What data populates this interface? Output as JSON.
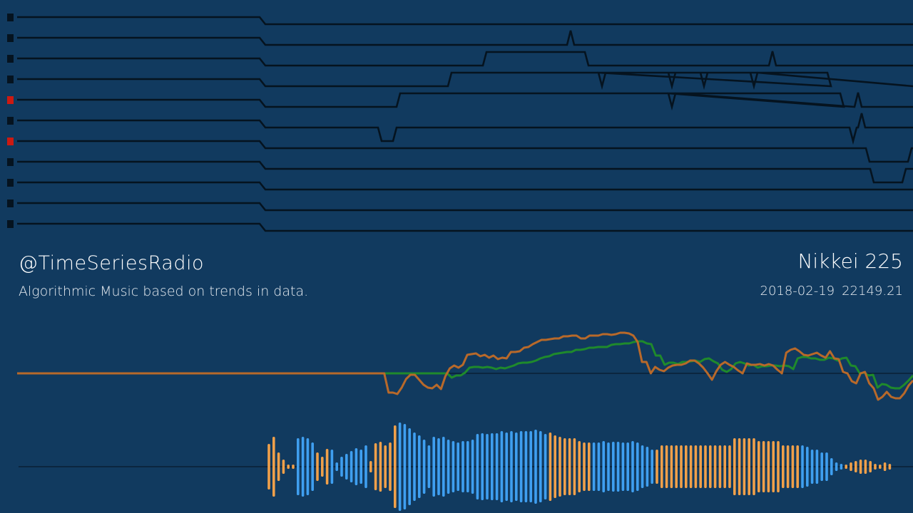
{
  "channel": {
    "handle": "@TimeSeriesRadio",
    "tagline": "Algorithmic Music based on trends in data."
  },
  "series_info": {
    "name": "Nikkei 225",
    "date": "2018-02-19",
    "value": "22149.21"
  },
  "colors": {
    "background": "#113a5f",
    "lane_line": "#05131f",
    "marker_idle": "#05131f",
    "marker_active": "#cc1a12",
    "price_line": "#b8692a",
    "average_line": "#1f8a2c",
    "bar_orange": "#f0a04a",
    "bar_blue": "#3f9ff0"
  },
  "lanes": {
    "count": 11,
    "active": [
      4,
      6
    ],
    "events": [
      [],
      [
        [
          "spike",
          800
        ]
      ],
      [
        [
          "up",
          677,
          825
        ],
        [
          "spike",
          1083
        ]
      ],
      [
        [
          "up",
          628,
          1165
        ],
        [
          "dip",
          844
        ],
        [
          "dip",
          942
        ],
        [
          "dip",
          987
        ],
        [
          "dip",
          1057
        ]
      ],
      [
        [
          "up",
          556,
          1183
        ],
        [
          "dip",
          942
        ],
        [
          "spike",
          1203
        ]
      ],
      [
        [
          "down",
          530,
          556
        ],
        [
          "dip",
          1196
        ],
        [
          "spike",
          1208
        ]
      ],
      [
        [
          "down",
          1214,
          1278
        ]
      ],
      [
        [
          "down",
          1220,
          1270
        ]
      ],
      [],
      [],
      []
    ]
  },
  "chart_data": {
    "type": "line",
    "series": [
      {
        "values": [
          0,
          0,
          0,
          0,
          0,
          0,
          0,
          0,
          0,
          0,
          0,
          0,
          0,
          0,
          0,
          0,
          0,
          0,
          0,
          0,
          0,
          0,
          0,
          0,
          0,
          0,
          0,
          0,
          0,
          0,
          0,
          0,
          0,
          0,
          0,
          0,
          0,
          0,
          0,
          0,
          0,
          0,
          0,
          0,
          0,
          0,
          0,
          0,
          0,
          0,
          0,
          0,
          0,
          0,
          0,
          0,
          0,
          0,
          0,
          0,
          0,
          0,
          0,
          0,
          0,
          0,
          0,
          0,
          0,
          0,
          0,
          0,
          0,
          0,
          0,
          0,
          0,
          0,
          0,
          0,
          0,
          0,
          0,
          0,
          0,
          -27,
          -27,
          -29,
          -20,
          -8,
          -2,
          -2,
          -9,
          -16,
          -20,
          -21,
          -16,
          -22,
          -4,
          7,
          11,
          8,
          12,
          26,
          27,
          28,
          24,
          26,
          22,
          25,
          20,
          22,
          21,
          30,
          30,
          31,
          36,
          37,
          41,
          44,
          47,
          47,
          48,
          49,
          49,
          52,
          52,
          53,
          53,
          49,
          49,
          53,
          53,
          53,
          55,
          55,
          54,
          55,
          57,
          57,
          56,
          53,
          44,
          16,
          16,
          0,
          9,
          5,
          3,
          8,
          11,
          12,
          12,
          14,
          18,
          18,
          14,
          8,
          0,
          -9,
          3,
          12,
          16,
          12,
          9,
          4,
          0,
          14,
          12,
          12,
          13,
          11,
          13,
          11,
          5,
          0,
          29,
          33,
          35,
          31,
          26,
          25,
          27,
          29,
          25,
          22,
          31,
          21,
          20,
          2,
          0,
          -11,
          -14,
          0,
          2,
          -14,
          -21,
          -37,
          -33,
          -26,
          -33,
          -35,
          -35,
          -28,
          -17,
          -10
        ]
      },
      {
        "values": [
          0,
          0,
          0,
          0,
          0,
          0,
          0,
          0,
          0,
          0,
          0,
          0,
          0,
          0,
          0,
          0,
          0,
          0,
          0,
          0,
          0,
          0,
          0,
          0,
          0,
          0,
          0,
          0,
          0,
          0,
          0,
          0,
          0,
          0,
          0,
          0,
          0,
          0,
          0,
          0,
          0,
          0,
          0,
          0,
          0,
          0,
          0,
          0,
          0,
          0,
          0,
          0,
          0,
          0,
          0,
          0,
          0,
          0,
          0,
          0,
          0,
          0,
          0,
          0,
          0,
          0,
          0,
          0,
          0,
          0,
          0,
          0,
          0,
          0,
          0,
          0,
          0,
          0,
          0,
          0,
          0,
          0,
          0,
          0,
          0,
          0,
          0,
          0,
          0,
          0,
          0,
          0,
          0,
          0,
          0,
          0,
          0,
          0,
          -6,
          -3,
          -3,
          1,
          8,
          9,
          9,
          8,
          9,
          8,
          6,
          8,
          7,
          9,
          11,
          14,
          15,
          15,
          16,
          18,
          21,
          23,
          24,
          27,
          28,
          29,
          30,
          30,
          33,
          33,
          34,
          36,
          36,
          37,
          37,
          37,
          40,
          41,
          41,
          42,
          42,
          44,
          45,
          45,
          42,
          41,
          25,
          25,
          12,
          15,
          15,
          13,
          16,
          16,
          17,
          18,
          16,
          20,
          21,
          17,
          14,
          5,
          2,
          6,
          14,
          16,
          14,
          11,
          12,
          8,
          10,
          10,
          11,
          11,
          10,
          11,
          10,
          6,
          21,
          23,
          23,
          21,
          21,
          19,
          19,
          22,
          21,
          18,
          21,
          22,
          11,
          10,
          0,
          1,
          -3,
          -2,
          -20,
          -15,
          -16,
          -20,
          -21,
          -21,
          -16,
          -10,
          -3
        ]
      }
    ],
    "waveform": {
      "color_runs": [
        [
          0,
          6,
          "o"
        ],
        [
          6,
          10,
          "b"
        ],
        [
          10,
          13,
          "o"
        ],
        [
          13,
          21,
          "b"
        ],
        [
          21,
          27,
          "o"
        ],
        [
          27,
          58,
          "b"
        ],
        [
          58,
          67,
          "o"
        ],
        [
          67,
          80,
          "b"
        ],
        [
          80,
          110,
          "o"
        ],
        [
          110,
          119,
          "b"
        ],
        [
          119,
          136,
          "o"
        ],
        [
          136,
          150,
          "b"
        ],
        [
          150,
          183,
          "o"
        ],
        [
          183,
          191,
          "b"
        ]
      ],
      "amplitudes": [
        32,
        42,
        20,
        10,
        3,
        0,
        40,
        42,
        40,
        34,
        20,
        14,
        25,
        24,
        6,
        14,
        18,
        22,
        26,
        24,
        30,
        8,
        33,
        35,
        30,
        34,
        58,
        62,
        60,
        54,
        48,
        44,
        38,
        30,
        42,
        40,
        42,
        38,
        36,
        34,
        36,
        36,
        38,
        46,
        47,
        46,
        47,
        47,
        50,
        48,
        50,
        48,
        50,
        50,
        50,
        52,
        50,
        46,
        48,
        44,
        42,
        40,
        40,
        40,
        36,
        34,
        34,
        34,
        34,
        36,
        34,
        35,
        35,
        34,
        34,
        36,
        34,
        30,
        28,
        24,
        24,
        30,
        30,
        30,
        30,
        30,
        30,
        30,
        30,
        30,
        30,
        30,
        30,
        30,
        30,
        30,
        40,
        40,
        40,
        40,
        40,
        36,
        36,
        36,
        36,
        36,
        30,
        30,
        30,
        30,
        30,
        28,
        24,
        24,
        20,
        20,
        12,
        6,
        4,
        2,
        6,
        8,
        10,
        10,
        8,
        4,
        2,
        6,
        4
      ]
    }
  }
}
